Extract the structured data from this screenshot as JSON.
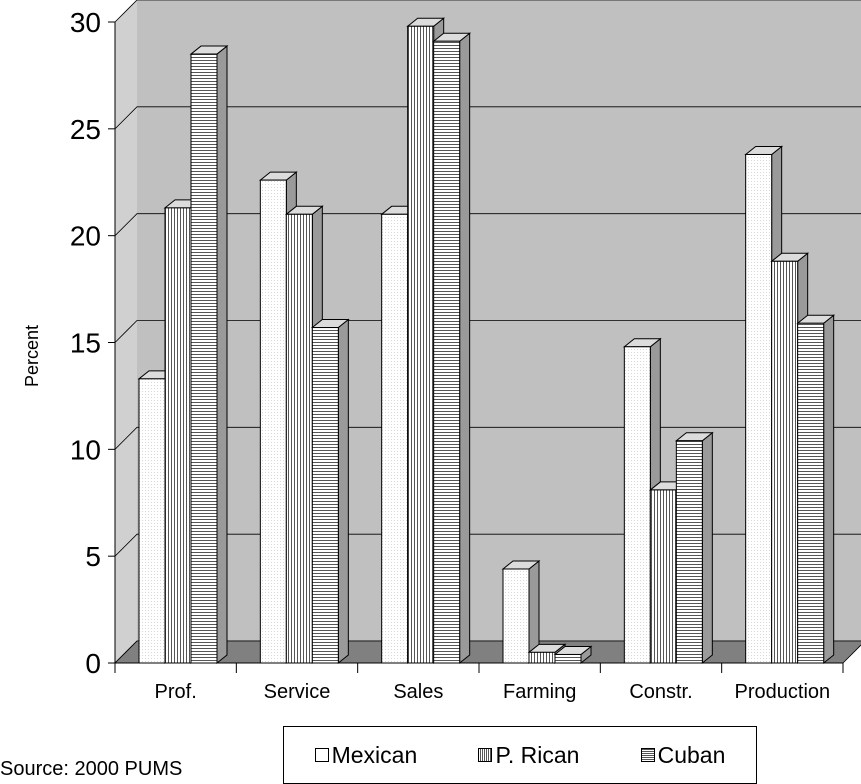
{
  "chart_data": {
    "type": "bar",
    "title": "",
    "xlabel": "",
    "ylabel": "Percent",
    "ylim": [
      0,
      30
    ],
    "yticks": [
      0,
      5,
      10,
      15,
      20,
      25,
      30
    ],
    "categories": [
      "Prof.",
      "Service",
      "Sales",
      "Farming",
      "Constr.",
      "Production"
    ],
    "series": [
      {
        "name": "Mexican",
        "values": [
          13.3,
          22.6,
          21.0,
          4.4,
          14.8,
          23.8
        ]
      },
      {
        "name": "P. Rican",
        "values": [
          21.3,
          21.0,
          29.8,
          0.5,
          8.1,
          18.8
        ]
      },
      {
        "name": "Cuban",
        "values": [
          28.5,
          15.7,
          29.1,
          0.4,
          10.4,
          15.9
        ]
      }
    ],
    "grid": true,
    "legend_position": "bottom",
    "colors": {
      "wall": "#c0c0c0",
      "floor": "#808080",
      "bar_face": "#ffffff",
      "bar_side": "#9a9a9a",
      "bar_top": "#dcdcdc"
    }
  },
  "source_note": "Source: 2000 PUMS",
  "legend": {
    "items": [
      "Mexican",
      "P. Rican",
      "Cuban"
    ]
  }
}
